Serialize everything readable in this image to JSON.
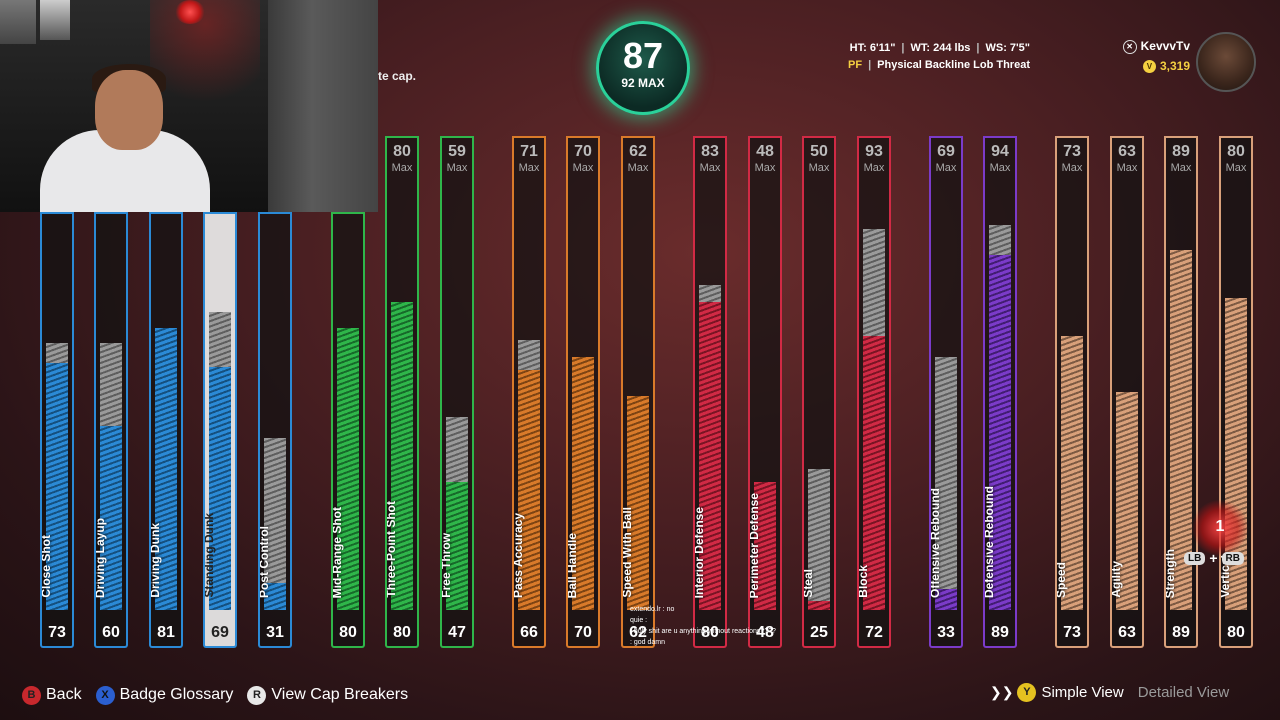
{
  "overall": {
    "rating": "87",
    "max": "92 MAX"
  },
  "profile": {
    "height": "HT: 6'11\"",
    "weight": "WT: 244 lbs",
    "wingspan": "WS: 7'5\"",
    "position": "PF",
    "archetype": "Physical Backline Lob Threat"
  },
  "gamer": {
    "tag": "KevvvTv",
    "vc": "3,319"
  },
  "cap_text": "te cap.",
  "bars": [
    {
      "label": "Close Shot",
      "value": "73",
      "cap": "",
      "color": "#2b8ad6",
      "dark": "#15507f"
    },
    {
      "label": "Driving Layup",
      "value": "60",
      "cap": "",
      "color": "#2b8ad6",
      "dark": "#15507f"
    },
    {
      "label": "Driving Dunk",
      "value": "81",
      "cap": "",
      "color": "#2b8ad6",
      "dark": "#15507f"
    },
    {
      "label": "Standing Dunk",
      "value": "69",
      "cap": "",
      "color": "#2b8ad6",
      "dark": "#15507f"
    },
    {
      "label": "Post Control",
      "value": "31",
      "cap": "",
      "color": "#2b8ad6",
      "dark": "#15507f"
    },
    {
      "label": "Mid-Range Shot",
      "value": "80",
      "cap": "",
      "color": "#2fb64a",
      "dark": "#176a2a"
    },
    {
      "label": "Three-Point Shot",
      "value": "80",
      "cap": "80",
      "color": "#2fb64a",
      "dark": "#176a2a"
    },
    {
      "label": "Free Throw",
      "value": "47",
      "cap": "59",
      "color": "#2fb64a",
      "dark": "#176a2a"
    },
    {
      "label": "Pass Accuracy",
      "value": "66",
      "cap": "71",
      "color": "#d97a2a",
      "dark": "#7e4413"
    },
    {
      "label": "Ball Handle",
      "value": "70",
      "cap": "70",
      "color": "#d97a2a",
      "dark": "#7e4413"
    },
    {
      "label": "Speed With Ball",
      "value": "62",
      "cap": "62",
      "color": "#d97a2a",
      "dark": "#7e4413"
    },
    {
      "label": "Interior Defense",
      "value": "80",
      "cap": "83",
      "color": "#d12a45",
      "dark": "#7a1424"
    },
    {
      "label": "Perimeter Defense",
      "value": "48",
      "cap": "48",
      "color": "#d12a45",
      "dark": "#7a1424"
    },
    {
      "label": "Steal",
      "value": "25",
      "cap": "50",
      "color": "#d12a45",
      "dark": "#7a1424"
    },
    {
      "label": "Block",
      "value": "72",
      "cap": "93",
      "color": "#d12a45",
      "dark": "#7a1424"
    },
    {
      "label": "Offensive Rebound",
      "value": "33",
      "cap": "69",
      "color": "#7b3bc9",
      "dark": "#421d72"
    },
    {
      "label": "Defensive Rebound",
      "value": "89",
      "cap": "94",
      "color": "#7b3bc9",
      "dark": "#421d72"
    },
    {
      "label": "Speed",
      "value": "73",
      "cap": "73",
      "color": "#d9a07a",
      "dark": "#7d5a43"
    },
    {
      "label": "Agility",
      "value": "63",
      "cap": "63",
      "color": "#d9a07a",
      "dark": "#7d5a43"
    },
    {
      "label": "Strength",
      "value": "89",
      "cap": "89",
      "color": "#d9a07a",
      "dark": "#7d5a43"
    },
    {
      "label": "Vertical",
      "value": "80",
      "cap": "80",
      "color": "#d9a07a",
      "dark": "#7d5a43"
    }
  ],
  "max_label": "Max",
  "bar_levels": [
    {
      "fill": 0.63,
      "max": 0.68
    },
    {
      "fill": 0.47,
      "max": 0.68
    },
    {
      "fill": 0.72,
      "max": 0.72
    },
    {
      "fill": 0.62,
      "max": 0.76
    },
    {
      "fill": 0.07,
      "max": 0.44
    },
    {
      "fill": 0.72,
      "max": 0.72
    },
    {
      "fill": 0.72,
      "max": 0.72
    },
    {
      "fill": 0.3,
      "max": 0.45
    },
    {
      "fill": 0.56,
      "max": 0.63
    },
    {
      "fill": 0.59,
      "max": 0.59
    },
    {
      "fill": 0.5,
      "max": 0.5
    },
    {
      "fill": 0.72,
      "max": 0.76
    },
    {
      "fill": 0.3,
      "max": 0.3
    },
    {
      "fill": 0.02,
      "max": 0.33
    },
    {
      "fill": 0.64,
      "max": 0.89
    },
    {
      "fill": 0.05,
      "max": 0.59
    },
    {
      "fill": 0.83,
      "max": 0.9
    },
    {
      "fill": 0.64,
      "max": 0.64
    },
    {
      "fill": 0.51,
      "max": 0.51
    },
    {
      "fill": 0.84,
      "max": 0.84
    },
    {
      "fill": 0.73,
      "max": 0.73
    }
  ],
  "selected_bar": "Standing Dunk",
  "chat": [
    {
      "user": "",
      "msg": "extendo.lr : no"
    },
    {
      "user": "",
      "msg": "quie : "
    },
    {
      "user": "",
      "msg": ": holy shit are u anything without reactions????"
    },
    {
      "user": "",
      "msg": ": god damn"
    }
  ],
  "footer": {
    "back": "Back",
    "back_key": "B",
    "glossary": "Badge Glossary",
    "glossary_key": "X",
    "cap_breakers": "View Cap Breakers",
    "cap_breakers_key": "R",
    "simple_key": "Y",
    "simple_view": "Simple View",
    "detailed_view": "Detailed View"
  },
  "reticle_count": "1",
  "lb": "LB",
  "rb": "RB",
  "plus": "+"
}
